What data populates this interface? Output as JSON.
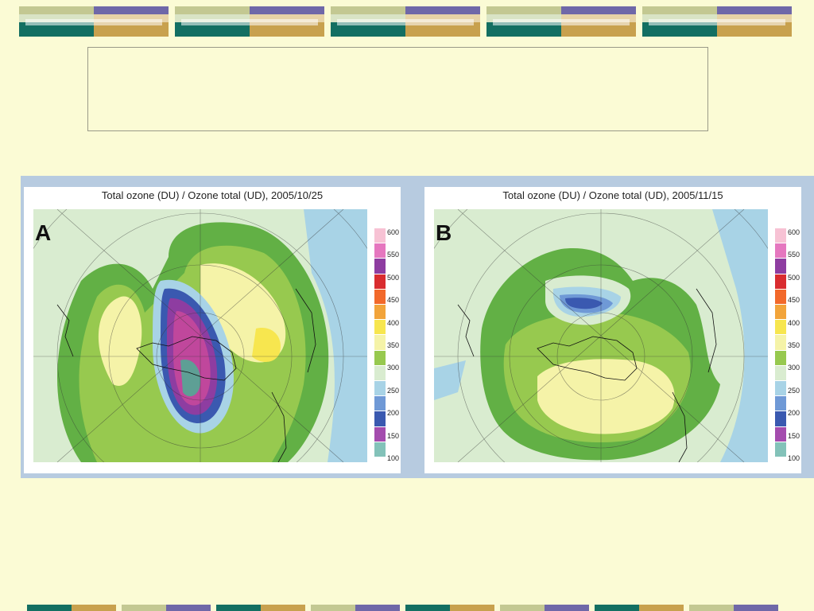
{
  "decor": {
    "colors": {
      "teal": "#136f62",
      "lavender": "#6f68a8",
      "sage": "#c3c892",
      "gold": "#c8a14e",
      "mint": "#d9e4c5",
      "sand": "#e7d3a6"
    }
  },
  "figure": {
    "panels": [
      {
        "letter": "A",
        "title": "Total ozone (DU) / Ozone total (UD), 2005/10/25"
      },
      {
        "letter": "B",
        "title": "Total ozone (DU) / Ozone total (UD), 2005/11/15"
      }
    ],
    "legend": {
      "labels": [
        "600",
        "550",
        "500",
        "450",
        "400",
        "350",
        "300",
        "250",
        "200",
        "150",
        "100"
      ],
      "colors": [
        "#f7c2d4",
        "#e577bf",
        "#8e3da1",
        "#d92c2f",
        "#f2692b",
        "#f2a43a",
        "#f7e64f",
        "#f5f3a8",
        "#97c94f",
        "#d9ecd0",
        "#a8d3e6",
        "#6f99d6",
        "#3a59b0",
        "#a44cae",
        "#83c2b9"
      ]
    }
  }
}
